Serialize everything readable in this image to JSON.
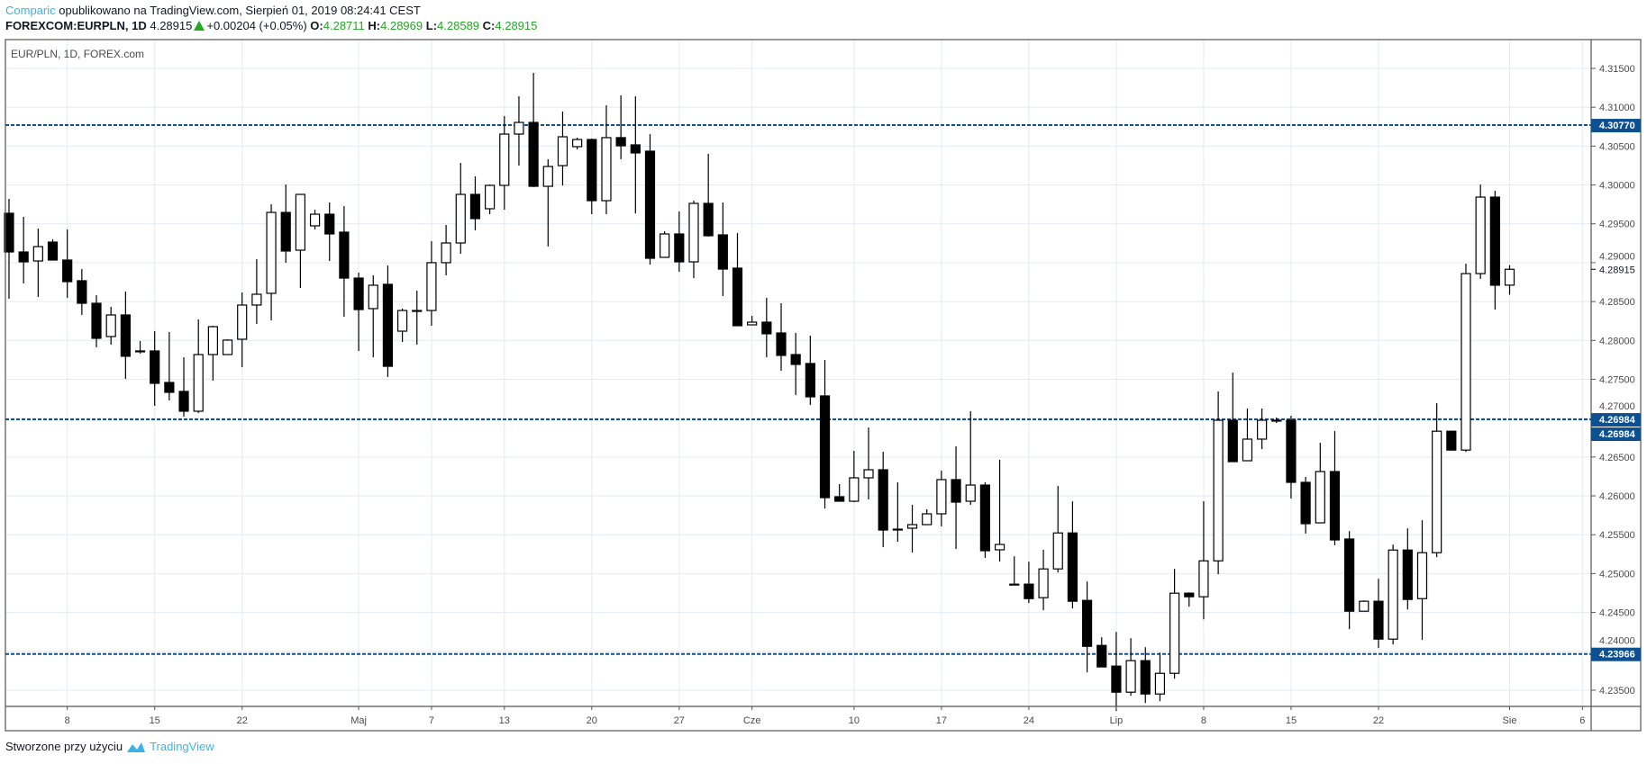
{
  "header": {
    "author": "Comparic",
    "published": "opublikowano na TradingView.com, Sierpień 01, 2019 08:24:41 CEST",
    "symbol": "FOREXCOM:EURPLN, 1D",
    "last": "4.28915",
    "change": "+0.00204 (+0.05%)",
    "o_label": "O:",
    "o": "4.28711",
    "h_label": "H:",
    "h": "4.28969",
    "l_label": "L:",
    "l": "4.28589",
    "c_label": "C:",
    "c": "4.28915"
  },
  "legend": "EUR/PLN, 1D, FOREX.com",
  "footer": {
    "text": "Stworzone przy użyciu",
    "brand": "TradingView"
  },
  "colors": {
    "level_line": "#0d4f8f",
    "up_body": "#ffffff",
    "down_body": "#000000",
    "grid": "#e1ebf3",
    "accent": "#3bb3e4",
    "green": "#22a822"
  },
  "chart_data": {
    "type": "candlestick",
    "title": "EUR/PLN, 1D, FOREX.com",
    "ylim": [
      4.2315,
      4.3189
    ],
    "y_ticks": [
      "4.31500",
      "4.31000",
      "4.30500",
      "4.30000",
      "4.29500",
      "4.29000",
      "4.28500",
      "4.28000",
      "4.27500",
      "4.27000",
      "4.26500",
      "4.26000",
      "4.25500",
      "4.25000",
      "4.24500",
      "4.24000",
      "4.23500"
    ],
    "x_ticks": [
      {
        "label": "8",
        "bar": 4
      },
      {
        "label": "15",
        "bar": 10
      },
      {
        "label": "22",
        "bar": 16
      },
      {
        "label": "Maj",
        "bar": 24
      },
      {
        "label": "7",
        "bar": 29
      },
      {
        "label": "13",
        "bar": 34
      },
      {
        "label": "20",
        "bar": 40
      },
      {
        "label": "27",
        "bar": 46
      },
      {
        "label": "Cze",
        "bar": 51
      },
      {
        "label": "10",
        "bar": 58
      },
      {
        "label": "17",
        "bar": 64
      },
      {
        "label": "24",
        "bar": 70
      },
      {
        "label": "Lip",
        "bar": 76
      },
      {
        "label": "8",
        "bar": 82
      },
      {
        "label": "15",
        "bar": 88
      },
      {
        "label": "22",
        "bar": 94
      },
      {
        "label": "Sie",
        "bar": 103
      },
      {
        "label": "6",
        "bar": 108
      }
    ],
    "levels": [
      {
        "value": 4.3077,
        "label": "4.30770"
      },
      {
        "value": 4.26984,
        "label": "4.26984"
      },
      {
        "value": 4.23966,
        "label": "4.23966"
      }
    ],
    "extra_level_label": "4.26984",
    "current_price": {
      "value": 4.28915,
      "label": "4.28915"
    },
    "ohlc_fields": [
      "open",
      "high",
      "low",
      "close"
    ],
    "ohlc": [
      [
        4.29636,
        4.29821,
        4.28536,
        4.29138
      ],
      [
        4.29138,
        4.2959,
        4.28733,
        4.29011
      ],
      [
        4.29022,
        4.29439,
        4.28559,
        4.29207
      ],
      [
        4.29265,
        4.293,
        4.29034,
        4.29034
      ],
      [
        4.29034,
        4.29427,
        4.28548,
        4.28756
      ],
      [
        4.28768,
        4.28918,
        4.28328,
        4.28478
      ],
      [
        4.28478,
        4.28582,
        4.27911,
        4.28027
      ],
      [
        4.2805,
        4.28432,
        4.27946,
        4.28328
      ],
      [
        4.28328,
        4.28629,
        4.27506,
        4.27796
      ],
      [
        4.27865,
        4.27992,
        4.2783,
        4.27865
      ],
      [
        4.27865,
        4.2812,
        4.27158,
        4.27448
      ],
      [
        4.27459,
        4.28108,
        4.27228,
        4.27332
      ],
      [
        4.27344,
        4.27783,
        4.27019,
        4.27089
      ],
      [
        4.27089,
        4.2827,
        4.27065,
        4.27818
      ],
      [
        4.27818,
        4.28189,
        4.27482,
        4.28177
      ],
      [
        4.27818,
        4.28015,
        4.27818,
        4.28004
      ],
      [
        4.28015,
        4.28617,
        4.27656,
        4.28455
      ],
      [
        4.28455,
        4.29045,
        4.28212,
        4.28594
      ],
      [
        4.28606,
        4.29752,
        4.28258,
        4.29647
      ],
      [
        4.29647,
        4.30006,
        4.28999,
        4.2915
      ],
      [
        4.29161,
        4.29879,
        4.28675,
        4.29879
      ],
      [
        4.29474,
        4.29682,
        4.29428,
        4.29624
      ],
      [
        4.29624,
        4.29775,
        4.29022,
        4.2937
      ],
      [
        4.29393,
        4.29729,
        4.28305,
        4.28802
      ],
      [
        4.28802,
        4.28872,
        4.27864,
        4.28397
      ],
      [
        4.28409,
        4.28837,
        4.27783,
        4.2871
      ],
      [
        4.28722,
        4.28964,
        4.27529,
        4.27667
      ],
      [
        4.28119,
        4.28409,
        4.2798,
        4.28385
      ],
      [
        4.28385,
        4.2864,
        4.27946,
        4.28385
      ],
      [
        4.28385,
        4.29277,
        4.28189,
        4.29
      ],
      [
        4.29,
        4.29485,
        4.28837,
        4.29254
      ],
      [
        4.29254,
        4.30284,
        4.29115,
        4.29879
      ],
      [
        4.29879,
        4.30111,
        4.29416,
        4.29567
      ],
      [
        4.29694,
        4.30006,
        4.29624,
        4.29995
      ],
      [
        4.29995,
        4.30886,
        4.29682,
        4.30655
      ],
      [
        4.30655,
        4.31141,
        4.30249,
        4.30805
      ],
      [
        4.30805,
        4.31442,
        4.29972,
        4.29983
      ],
      [
        4.29983,
        4.30331,
        4.29208,
        4.30238
      ],
      [
        4.30249,
        4.30944,
        4.29994,
        4.3062
      ],
      [
        4.30493,
        4.30609,
        4.30458,
        4.30585
      ],
      [
        4.30585,
        4.30597,
        4.29624,
        4.29798
      ],
      [
        4.29798,
        4.31025,
        4.29624,
        4.30609
      ],
      [
        4.30609,
        4.31153,
        4.30331,
        4.30504
      ],
      [
        4.30516,
        4.31141,
        4.29634,
        4.30412
      ],
      [
        4.30435,
        4.30655,
        4.28976,
        4.29057
      ],
      [
        4.29069,
        4.29405,
        4.29069,
        4.2937
      ],
      [
        4.2937,
        4.29659,
        4.28883,
        4.29011
      ],
      [
        4.29011,
        4.29798,
        4.28802,
        4.29763
      ],
      [
        4.29763,
        4.304,
        4.29335,
        4.29347
      ],
      [
        4.29358,
        4.29775,
        4.28571,
        4.28918
      ],
      [
        4.2893,
        4.29381,
        4.28189,
        4.28189
      ],
      [
        4.282,
        4.28316,
        4.282,
        4.28235
      ],
      [
        4.28235,
        4.28548,
        4.27783,
        4.28085
      ],
      [
        4.28096,
        4.28478,
        4.2761,
        4.27807
      ],
      [
        4.27818,
        4.28096,
        4.27297,
        4.27691
      ],
      [
        4.27703,
        4.28061,
        4.2717,
        4.27274
      ],
      [
        4.27286,
        4.27749,
        4.25838,
        4.25977
      ],
      [
        4.25989,
        4.26151,
        4.25931,
        4.25931
      ],
      [
        4.25931,
        4.26579,
        4.25919,
        4.26232
      ],
      [
        4.26232,
        4.2688,
        4.25954,
        4.26336
      ],
      [
        4.26336,
        4.26568,
        4.2534,
        4.2556
      ],
      [
        4.25572,
        4.26174,
        4.2541,
        4.25572
      ],
      [
        4.25584,
        4.25885,
        4.25271,
        4.2563
      ],
      [
        4.2563,
        4.25827,
        4.2563,
        4.25769
      ],
      [
        4.25769,
        4.26325,
        4.25607,
        4.26209
      ],
      [
        4.26209,
        4.26637,
        4.25317,
        4.25919
      ],
      [
        4.25931,
        4.27089,
        4.25885,
        4.26139
      ],
      [
        4.26139,
        4.26174,
        4.25201,
        4.25294
      ],
      [
        4.25306,
        4.26464,
        4.25155,
        4.25375
      ],
      [
        4.24864,
        4.25222,
        4.24864,
        4.24864
      ],
      [
        4.24864,
        4.25153,
        4.2462,
        4.24678
      ],
      [
        4.2469,
        4.25306,
        4.24528,
        4.2506
      ],
      [
        4.2506,
        4.26128,
        4.25014,
        4.25523
      ],
      [
        4.25523,
        4.25929,
        4.24551,
        4.24644
      ],
      [
        4.24655,
        4.24898,
        4.23729,
        4.24064
      ],
      [
        4.24076,
        4.2418,
        4.23799,
        4.23799
      ],
      [
        4.2381,
        4.2425,
        4.23231,
        4.23474
      ],
      [
        4.23474,
        4.24169,
        4.23428,
        4.2388
      ],
      [
        4.2388,
        4.24053,
        4.23335,
        4.23451
      ],
      [
        4.23451,
        4.23984,
        4.23358,
        4.23717
      ],
      [
        4.23717,
        4.2506,
        4.23648,
        4.24748
      ],
      [
        4.24748,
        4.24759,
        4.24574,
        4.24702
      ],
      [
        4.24702,
        4.25931,
        4.24412,
        4.25164
      ],
      [
        4.25164,
        4.27343,
        4.24991,
        4.26973
      ],
      [
        4.26973,
        4.27587,
        4.2644,
        4.2644
      ],
      [
        4.26452,
        4.27124,
        4.26452,
        4.2673
      ],
      [
        4.2673,
        4.27124,
        4.26602,
        4.26973
      ],
      [
        4.26973,
        4.27008,
        4.26938,
        4.26973
      ],
      [
        4.26973,
        4.27031,
        4.25966,
        4.26174
      ],
      [
        4.26174,
        4.26244,
        4.25514,
        4.25642
      ],
      [
        4.25653,
        4.26684,
        4.25653,
        4.26313
      ],
      [
        4.26313,
        4.26834,
        4.25364,
        4.25433
      ],
      [
        4.25445,
        4.25547,
        4.24285,
        4.24516
      ],
      [
        4.24516,
        4.24655,
        4.24516,
        4.24644
      ],
      [
        4.24644,
        4.24933,
        4.24042,
        4.24157
      ],
      [
        4.24157,
        4.25373,
        4.24088,
        4.25303
      ],
      [
        4.25303,
        4.25582,
        4.24539,
        4.24667
      ],
      [
        4.24678,
        4.25686,
        4.24146,
        4.25269
      ],
      [
        4.25269,
        4.27191,
        4.25211,
        4.26832
      ],
      [
        4.26832,
        4.26832,
        4.26589,
        4.26589
      ],
      [
        4.26589,
        4.28988,
        4.26566,
        4.2886
      ],
      [
        4.2886,
        4.30006,
        4.28791,
        4.29844
      ],
      [
        4.29844,
        4.29925,
        4.28397,
        4.2871
      ],
      [
        4.28711,
        4.28969,
        4.28589,
        4.28915
      ]
    ]
  }
}
